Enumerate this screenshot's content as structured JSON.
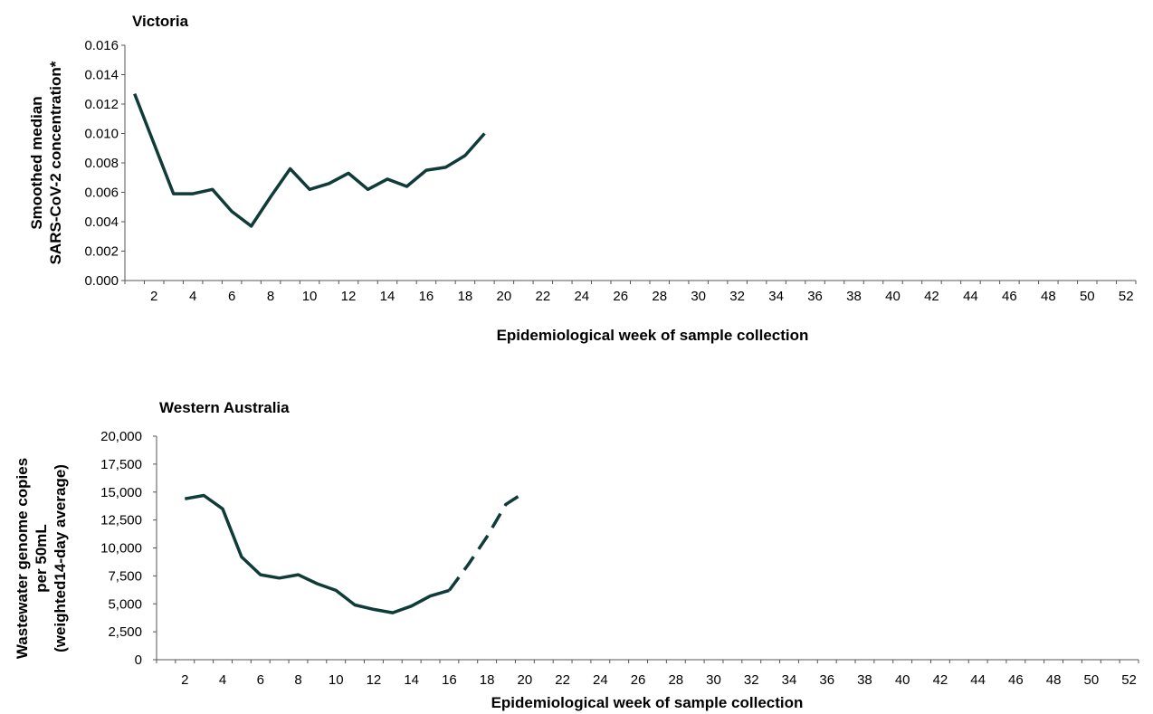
{
  "chart_data": [
    {
      "type": "line",
      "title": "Victoria",
      "ylabel": [
        "Smoothed median",
        "SARS-CoV-2 concentration*"
      ],
      "xlabel": "Epidemiological week of sample collection",
      "ylim": [
        0,
        0.016
      ],
      "yticks": [
        "0.000",
        "0.002",
        "0.004",
        "0.006",
        "0.008",
        "0.010",
        "0.012",
        "0.014",
        "0.016"
      ],
      "xlim": [
        1,
        52
      ],
      "xticks": [
        2,
        4,
        6,
        8,
        10,
        12,
        14,
        16,
        18,
        20,
        22,
        24,
        26,
        28,
        30,
        32,
        34,
        36,
        38,
        40,
        42,
        44,
        46,
        48,
        50,
        52
      ],
      "line_color": "#0f3b38",
      "series": [
        {
          "x": [
            1,
            2,
            3,
            4,
            5,
            6,
            7,
            8,
            9,
            10,
            11,
            12,
            13,
            14,
            15,
            16,
            17,
            18,
            19
          ],
          "values": [
            0.0127,
            0.0093,
            0.0059,
            0.0059,
            0.0062,
            0.0047,
            0.0037,
            0.0057,
            0.0076,
            0.0062,
            0.0066,
            0.0073,
            0.0062,
            0.0069,
            0.0064,
            0.0075,
            0.0077,
            0.0085,
            0.01
          ],
          "style": "solid"
        }
      ]
    },
    {
      "type": "line",
      "title": "Western Australia",
      "ylabel": [
        "Wastewater genome copies",
        "per 50mL",
        "(weighted14-day average)"
      ],
      "xlabel": "Epidemiological week of sample collection",
      "ylim": [
        0,
        20000
      ],
      "yticks": [
        "0",
        "2,500",
        "5,000",
        "7,500",
        "10,000",
        "12,500",
        "15,000",
        "17,500",
        "20,000"
      ],
      "xlim": [
        1,
        52
      ],
      "xticks": [
        2,
        4,
        6,
        8,
        10,
        12,
        14,
        16,
        18,
        20,
        22,
        24,
        26,
        28,
        30,
        32,
        34,
        36,
        38,
        40,
        42,
        44,
        46,
        48,
        50,
        52
      ],
      "line_color": "#0f3b38",
      "series": [
        {
          "x": [
            2,
            3,
            4,
            5,
            6,
            7,
            8,
            9,
            10,
            11,
            12,
            13,
            14,
            15,
            16
          ],
          "values": [
            14400,
            14700,
            13500,
            9200,
            7600,
            7300,
            7600,
            6800,
            6200,
            4900,
            4500,
            4200,
            4800,
            5700,
            6200
          ],
          "style": "solid"
        },
        {
          "x": [
            16,
            17,
            18,
            19,
            20
          ],
          "values": [
            6200,
            8500,
            11000,
            13900,
            15000
          ],
          "style": "dashed"
        }
      ]
    }
  ]
}
